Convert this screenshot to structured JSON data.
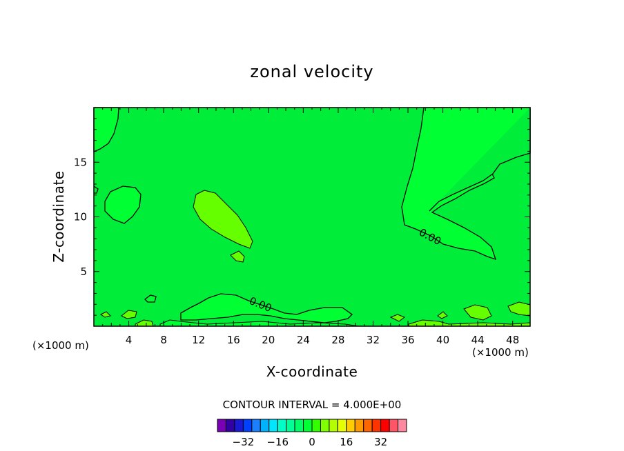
{
  "chart_data": {
    "type": "contour",
    "title": "zonal velocity",
    "xlabel": "X-coordinate",
    "ylabel": "Z-coordinate",
    "x_unit_note": "(×1000 m)",
    "x_unit_note_right": "(×1000 m)",
    "xlim": [
      0,
      50
    ],
    "ylim": [
      0,
      20
    ],
    "x_ticks": [
      4,
      8,
      12,
      16,
      20,
      24,
      28,
      32,
      36,
      40,
      44,
      48
    ],
    "y_ticks": [
      5,
      10,
      15
    ],
    "contour_interval_text": "CONTOUR INTERVAL = 4.000E+00",
    "contour_labels": [
      "0.00",
      "0.00"
    ],
    "background_color": "#00ee3a",
    "positive_region_color": "#66ff00",
    "negative_region_color": "#00ff33",
    "colorbar": {
      "colors": [
        "#7a00b8",
        "#3300a6",
        "#1a1ad6",
        "#0040ff",
        "#1a80ff",
        "#00b3ff",
        "#00e6ff",
        "#00ffc8",
        "#00ff99",
        "#00ff66",
        "#00ff33",
        "#33ff00",
        "#80ff00",
        "#b3ff00",
        "#e6ff00",
        "#ffcc00",
        "#ff9900",
        "#ff6600",
        "#ff3300",
        "#ff0000",
        "#ff5566",
        "#ff88a0"
      ],
      "tick_labels": [
        "-32",
        "-16",
        "0",
        "16",
        "32"
      ],
      "tick_values": [
        -32,
        -16,
        0,
        16,
        32
      ],
      "range": [
        -44,
        44
      ]
    }
  }
}
